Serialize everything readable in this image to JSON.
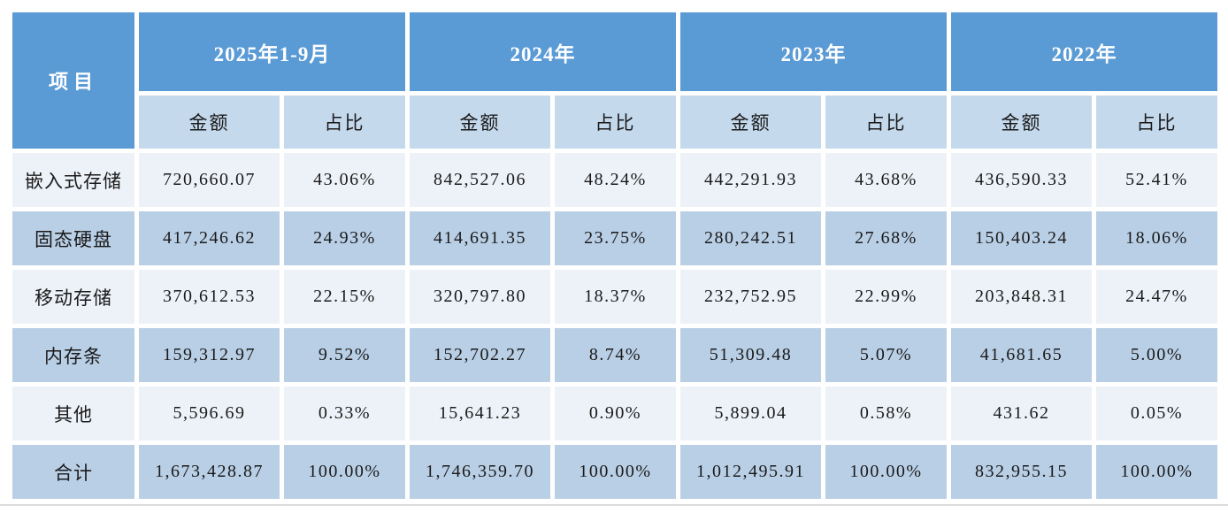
{
  "table": {
    "corner_label": "项目",
    "year_headers": [
      "2025年1-9月",
      "2024年",
      "2023年",
      "2022年"
    ],
    "sub_headers": {
      "amount": "金额",
      "ratio": "占比"
    },
    "rows": [
      {
        "label": "嵌入式存储",
        "cells": [
          "720,660.07",
          "43.06%",
          "842,527.06",
          "48.24%",
          "442,291.93",
          "43.68%",
          "436,590.33",
          "52.41%"
        ]
      },
      {
        "label": "固态硬盘",
        "cells": [
          "417,246.62",
          "24.93%",
          "414,691.35",
          "23.75%",
          "280,242.51",
          "27.68%",
          "150,403.24",
          "18.06%"
        ]
      },
      {
        "label": "移动存储",
        "cells": [
          "370,612.53",
          "22.15%",
          "320,797.80",
          "18.37%",
          "232,752.95",
          "22.99%",
          "203,848.31",
          "24.47%"
        ]
      },
      {
        "label": "内存条",
        "cells": [
          "159,312.97",
          "9.52%",
          "152,702.27",
          "8.74%",
          "51,309.48",
          "5.07%",
          "41,681.65",
          "5.00%"
        ]
      },
      {
        "label": "其他",
        "cells": [
          "5,596.69",
          "0.33%",
          "15,641.23",
          "0.90%",
          "5,899.04",
          "0.58%",
          "431.62",
          "0.05%"
        ]
      },
      {
        "label": "合计",
        "cells": [
          "1,673,428.87",
          "100.00%",
          "1,746,359.70",
          "100.00%",
          "1,012,495.91",
          "100.00%",
          "832,955.15",
          "100.00%"
        ]
      }
    ]
  },
  "colors": {
    "header_blue": "#5b9bd5",
    "subheader_blue": "#c5d9ed",
    "row_blue": "#b9cfe6",
    "row_light": "#edf2f8",
    "header_text": "#ffffff",
    "body_text": "#1a1a1a",
    "bottom_divider": "#dcdcdc"
  }
}
